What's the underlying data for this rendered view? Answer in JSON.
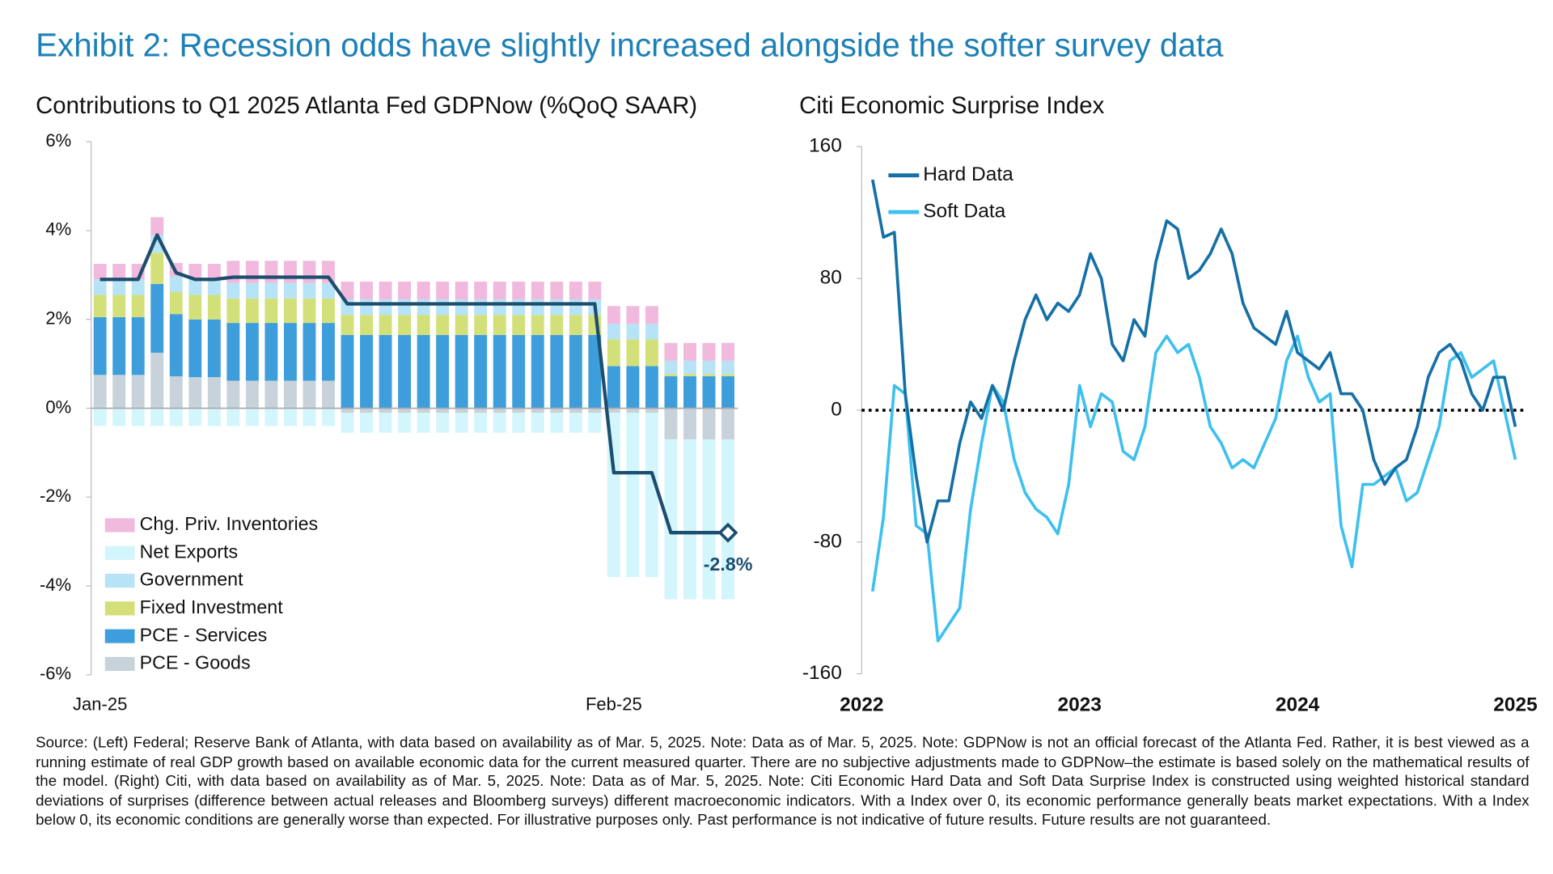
{
  "title": "Exhibit 2: Recession odds have slightly increased alongside the softer survey data",
  "footnote": "Source: (Left) Federal; Reserve Bank of Atlanta, with data based on availability as of Mar. 5, 2025. Note: Data as of Mar. 5, 2025. Note: GDPNow is not an official forecast of the Atlanta Fed. Rather, it is best viewed as a running estimate of real GDP growth based on available economic data for the current measured quarter. There are no subjective adjustments made to GDPNow–the estimate is based solely on the mathematical results of the model. (Right) Citi, with data based on availability as of Mar. 5, 2025. Note: Data as of Mar. 5, 2025. Note: Citi Economic Hard Data and Soft Data Surprise Index is constructed using weighted historical standard deviations of surprises (difference between actual releases and Bloomberg surveys) different macroeconomic indicators. With a Index over 0, its economic performance generally beats market expectations. With a Index below 0, its economic conditions are generally worse than expected. For illustrative purposes only. Past performance is not indicative of future results. Future results are not guaranteed.",
  "chart_data": [
    {
      "type": "bar",
      "stacked": true,
      "title": "Contributions to Q1 2025 Atlanta Fed GDPNow (%QoQ SAAR)",
      "categories": [
        "Jan-25",
        null,
        null,
        null,
        null,
        null,
        null,
        null,
        null,
        null,
        null,
        null,
        null,
        null,
        null,
        null,
        null,
        null,
        null,
        null,
        null,
        null,
        null,
        null,
        null,
        null,
        null,
        "Feb-25",
        null,
        null,
        null,
        null,
        null,
        null
      ],
      "ylim": [
        -6,
        6
      ],
      "yticks": [
        {
          "value": -6,
          "label": "-6%"
        },
        {
          "value": -4,
          "label": "-4%"
        },
        {
          "value": -2,
          "label": "-2%"
        },
        {
          "value": 0,
          "label": "0%"
        },
        {
          "value": 2,
          "label": "2%"
        },
        {
          "value": 4,
          "label": "4%"
        },
        {
          "value": 6,
          "label": "6%"
        }
      ],
      "legend": "lower left",
      "series": [
        {
          "name": "PCE - Goods",
          "color": "#c8d2da",
          "values": [
            0.75,
            0.75,
            0.75,
            1.25,
            0.72,
            0.7,
            0.7,
            0.62,
            0.62,
            0.62,
            0.62,
            0.62,
            0.62,
            -0.1,
            -0.1,
            -0.1,
            -0.1,
            -0.1,
            -0.1,
            -0.1,
            -0.1,
            -0.1,
            -0.1,
            -0.1,
            -0.1,
            -0.1,
            -0.1,
            -0.1,
            -0.1,
            -0.1,
            -0.7,
            -0.7,
            -0.7,
            -0.7
          ]
        },
        {
          "name": "PCE - Services",
          "color": "#3e9edb",
          "values": [
            1.3,
            1.3,
            1.3,
            1.55,
            1.4,
            1.3,
            1.3,
            1.3,
            1.3,
            1.3,
            1.3,
            1.3,
            1.3,
            1.65,
            1.65,
            1.65,
            1.65,
            1.65,
            1.65,
            1.65,
            1.65,
            1.65,
            1.65,
            1.65,
            1.65,
            1.65,
            1.65,
            0.95,
            0.95,
            0.95,
            0.72,
            0.72,
            0.72,
            0.72
          ]
        },
        {
          "name": "Fixed Investment",
          "color": "#d3e07a",
          "values": [
            0.5,
            0.5,
            0.5,
            0.7,
            0.5,
            0.55,
            0.55,
            0.55,
            0.55,
            0.55,
            0.55,
            0.55,
            0.55,
            0.45,
            0.45,
            0.45,
            0.45,
            0.45,
            0.45,
            0.45,
            0.45,
            0.45,
            0.45,
            0.45,
            0.45,
            0.45,
            0.45,
            0.6,
            0.6,
            0.6,
            0.05,
            0.05,
            0.05,
            0.05
          ]
        },
        {
          "name": "Government",
          "color": "#b7e3f6",
          "values": [
            0.35,
            0.35,
            0.35,
            0.4,
            0.35,
            0.35,
            0.35,
            0.35,
            0.35,
            0.35,
            0.35,
            0.35,
            0.35,
            0.35,
            0.35,
            0.35,
            0.35,
            0.35,
            0.35,
            0.35,
            0.35,
            0.35,
            0.35,
            0.35,
            0.35,
            0.35,
            0.35,
            0.35,
            0.35,
            0.35,
            0.3,
            0.3,
            0.3,
            0.3
          ]
        },
        {
          "name": "Net Exports",
          "color": "#d3f5fc",
          "values": [
            -0.4,
            -0.4,
            -0.4,
            -0.4,
            -0.4,
            -0.4,
            -0.4,
            -0.4,
            -0.4,
            -0.4,
            -0.4,
            -0.4,
            -0.4,
            -0.45,
            -0.45,
            -0.45,
            -0.45,
            -0.45,
            -0.45,
            -0.45,
            -0.45,
            -0.45,
            -0.45,
            -0.45,
            -0.45,
            -0.45,
            -0.45,
            -3.7,
            -3.7,
            -3.7,
            -3.6,
            -3.6,
            -3.6,
            -3.6
          ]
        },
        {
          "name": "Chg. Priv. Inventories",
          "color": "#f1b9dd",
          "values": [
            0.35,
            0.35,
            0.35,
            0.4,
            0.3,
            0.35,
            0.35,
            0.5,
            0.5,
            0.5,
            0.5,
            0.5,
            0.5,
            0.4,
            0.4,
            0.4,
            0.4,
            0.4,
            0.4,
            0.4,
            0.4,
            0.4,
            0.4,
            0.4,
            0.4,
            0.4,
            0.4,
            0.4,
            0.4,
            0.4,
            0.4,
            0.4,
            0.4,
            0.4
          ]
        },
        {
          "type": "line",
          "color": "#1d4e6e",
          "values": [
            2.9,
            2.9,
            2.9,
            3.9,
            3.05,
            2.9,
            2.9,
            2.95,
            2.95,
            2.95,
            2.95,
            2.95,
            2.95,
            2.35,
            2.35,
            2.35,
            2.35,
            2.35,
            2.35,
            2.35,
            2.35,
            2.35,
            2.35,
            2.35,
            2.35,
            2.35,
            2.35,
            -1.45,
            -1.45,
            -1.45,
            -2.8,
            -2.8,
            -2.8,
            -2.8
          ],
          "value_labels": [
            null,
            null,
            null,
            null,
            null,
            null,
            null,
            null,
            null,
            null,
            null,
            null,
            null,
            null,
            null,
            null,
            null,
            null,
            null,
            null,
            null,
            null,
            null,
            null,
            null,
            null,
            null,
            null,
            null,
            null,
            null,
            null,
            null,
            "-2.8%"
          ]
        }
      ]
    },
    {
      "type": "line",
      "title": "Citi Economic Surprise Index",
      "xlim": [
        2022,
        2025
      ],
      "xticks": [
        2022,
        2023,
        2024,
        2025
      ],
      "ylim": [
        -160,
        160
      ],
      "yticks": [
        -160,
        -80,
        0,
        80,
        160
      ],
      "zero_line": "dotted",
      "legend": "upper left",
      "x": [
        2022.05,
        2022.1,
        2022.15,
        2022.2,
        2022.25,
        2022.3,
        2022.35,
        2022.4,
        2022.45,
        2022.5,
        2022.55,
        2022.6,
        2022.65,
        2022.7,
        2022.75,
        2022.8,
        2022.85,
        2022.9,
        2022.95,
        2023.0,
        2023.05,
        2023.1,
        2023.15,
        2023.2,
        2023.25,
        2023.3,
        2023.35,
        2023.4,
        2023.45,
        2023.5,
        2023.55,
        2023.6,
        2023.65,
        2023.7,
        2023.75,
        2023.8,
        2023.85,
        2023.9,
        2023.95,
        2024.0,
        2024.05,
        2024.1,
        2024.15,
        2024.2,
        2024.25,
        2024.3,
        2024.35,
        2024.4,
        2024.45,
        2024.5,
        2024.55,
        2024.6,
        2024.65,
        2024.7,
        2024.75,
        2024.8,
        2024.85,
        2024.9,
        2024.95,
        2025.0
      ],
      "series": [
        {
          "name": "Hard Data",
          "color": "#1570a6",
          "values": [
            140,
            105,
            108,
            10,
            -40,
            -80,
            -55,
            -55,
            -20,
            5,
            -5,
            15,
            0,
            30,
            55,
            70,
            55,
            65,
            60,
            70,
            95,
            80,
            40,
            30,
            55,
            45,
            90,
            115,
            110,
            80,
            85,
            95,
            110,
            95,
            65,
            50,
            45,
            40,
            60,
            35,
            30,
            25,
            35,
            10,
            10,
            0,
            -30,
            -45,
            -35,
            -30,
            -10,
            20,
            35,
            40,
            30,
            10,
            0,
            20,
            20,
            -10
          ]
        },
        {
          "name": "Soft Data",
          "color": "#3ec0ef",
          "values": [
            -110,
            -65,
            15,
            10,
            -70,
            -75,
            -140,
            -130,
            -120,
            -60,
            -20,
            15,
            5,
            -30,
            -50,
            -60,
            -65,
            -75,
            -45,
            15,
            -10,
            10,
            5,
            -25,
            -30,
            -10,
            35,
            45,
            35,
            40,
            20,
            -10,
            -20,
            -35,
            -30,
            -35,
            -20,
            -5,
            30,
            45,
            20,
            5,
            10,
            -70,
            -95,
            -45,
            -45,
            -40,
            -35,
            -55,
            -50,
            -30,
            -10,
            30,
            35,
            20,
            25,
            30,
            0,
            -30
          ]
        }
      ]
    }
  ]
}
